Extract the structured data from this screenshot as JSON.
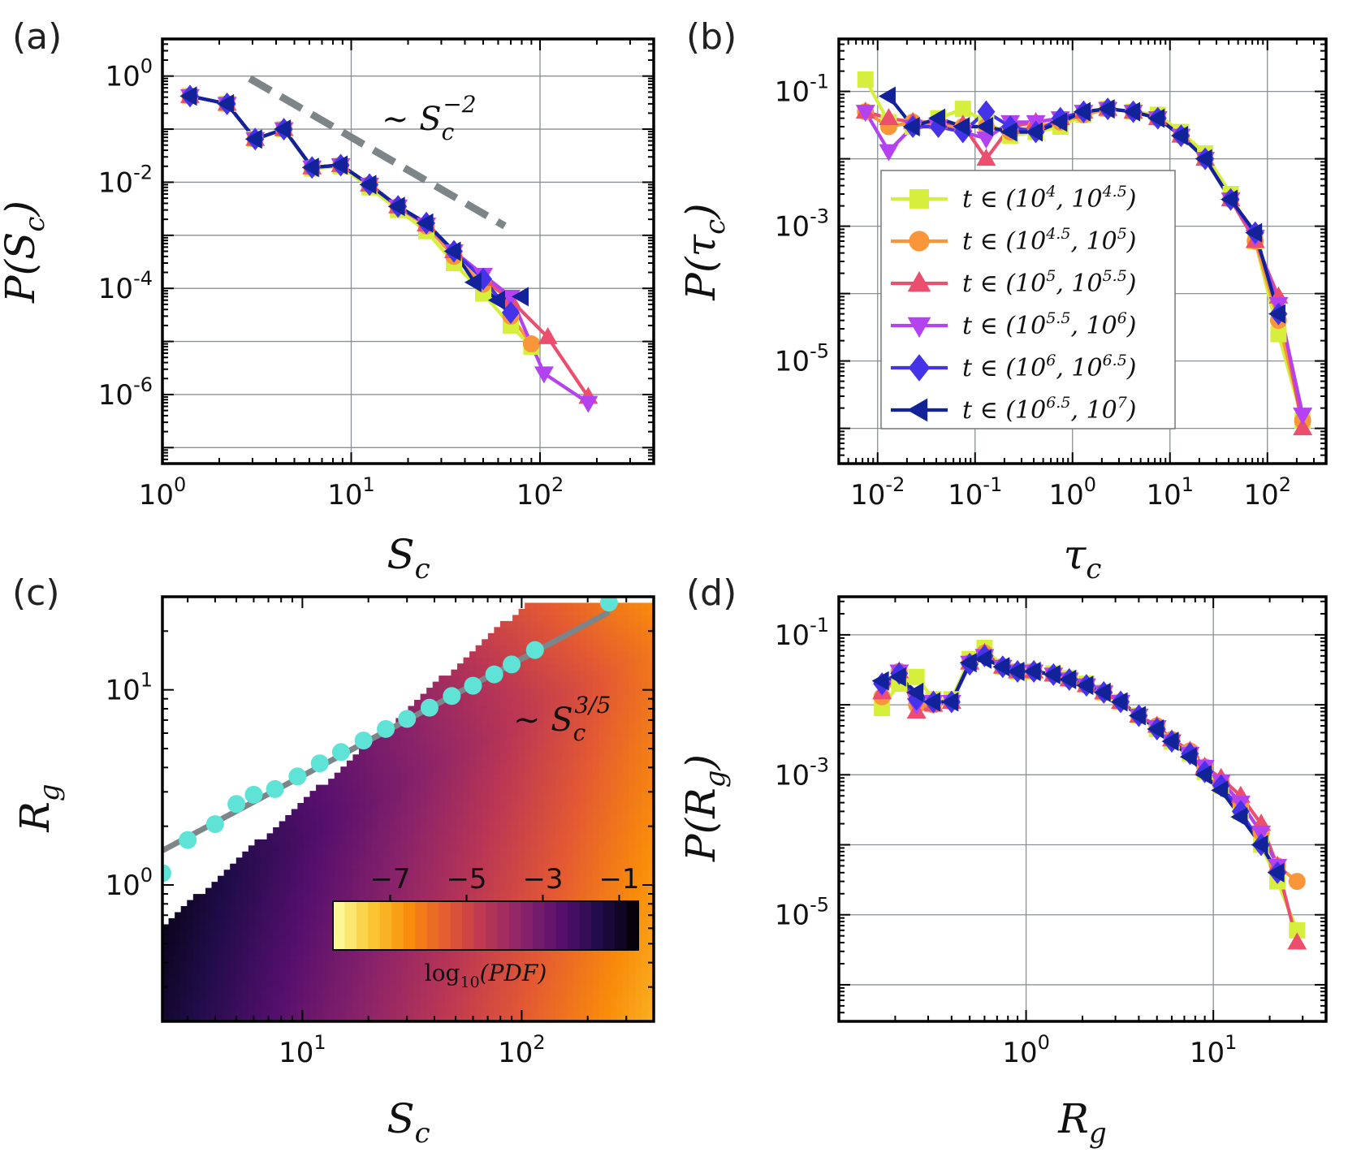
{
  "chart_data": [
    {
      "panel": "(a)",
      "type": "line",
      "xlabel": "S_c",
      "ylabel": "P(S_c)",
      "xscale": "log",
      "yscale": "log",
      "xlim": [
        1,
        400
      ],
      "ylim": [
        5e-08,
        5
      ],
      "xtick_labels": [
        "10^0",
        "10^1",
        "10^2"
      ],
      "ytick_labels": [
        "10^0",
        "10^-2",
        "10^-4",
        "10^-6"
      ],
      "annotation": "~ S_c^{-2}",
      "guide_line": {
        "style": "dashed",
        "color": "#7d8588",
        "x": [
          2.9,
          65
        ],
        "y": [
          0.9,
          0.0015
        ]
      },
      "series": [
        {
          "name": "t ∈ (10^4, 10^4.5)",
          "x": [
            1.4,
            2.2,
            3.1,
            4.4,
            6.2,
            8.8,
            12.5,
            17.7,
            25,
            35,
            50,
            70,
            90
          ],
          "y": [
            0.42,
            0.3,
            0.065,
            0.1,
            0.018,
            0.02,
            0.008,
            0.003,
            0.0012,
            0.0003,
            8e-05,
            2e-05,
            8e-06
          ]
        },
        {
          "name": "t ∈ (10^4.5, 10^5)",
          "x": [
            1.4,
            2.2,
            3.1,
            4.4,
            6.2,
            8.8,
            12.5,
            17.7,
            25,
            35,
            50,
            70,
            90
          ],
          "y": [
            0.42,
            0.3,
            0.065,
            0.1,
            0.019,
            0.021,
            0.009,
            0.0035,
            0.0015,
            0.0004,
            0.00012,
            3e-05,
            9e-06
          ]
        },
        {
          "name": "t ∈ (10^5, 10^5.5)",
          "x": [
            1.4,
            2.2,
            3.1,
            4.4,
            6.2,
            8.8,
            12.5,
            17.7,
            25,
            35,
            50,
            70,
            110,
            180
          ],
          "y": [
            0.42,
            0.3,
            0.065,
            0.1,
            0.019,
            0.021,
            0.009,
            0.0035,
            0.0016,
            0.0005,
            0.00015,
            6e-05,
            1.2e-05,
            9e-07
          ]
        },
        {
          "name": "t ∈ (10^5.5, 10^6)",
          "x": [
            1.4,
            2.2,
            3.1,
            4.4,
            6.2,
            8.8,
            12.5,
            17.7,
            25,
            35,
            50,
            70,
            105,
            180
          ],
          "y": [
            0.42,
            0.3,
            0.065,
            0.1,
            0.019,
            0.021,
            0.009,
            0.0035,
            0.0016,
            0.0005,
            0.00018,
            7e-05,
            2.5e-06,
            7e-07
          ]
        },
        {
          "name": "t ∈ (10^6, 10^6.5)",
          "x": [
            1.4,
            2.2,
            3.1,
            4.4,
            6.2,
            8.8,
            12.5,
            17.7,
            25,
            35,
            50,
            70
          ],
          "y": [
            0.42,
            0.3,
            0.065,
            0.1,
            0.019,
            0.021,
            0.009,
            0.0035,
            0.0017,
            0.0005,
            0.00015,
            3.5e-05
          ]
        },
        {
          "name": "t ∈ (10^6.5, 10^7)",
          "x": [
            1.4,
            2.2,
            3.1,
            4.4,
            6.2,
            8.8,
            12.5,
            17.7,
            25,
            35,
            45,
            60,
            80
          ],
          "y": [
            0.42,
            0.3,
            0.065,
            0.1,
            0.019,
            0.021,
            0.009,
            0.0035,
            0.0017,
            0.0005,
            0.00013,
            6e-05,
            7e-05
          ]
        }
      ]
    },
    {
      "panel": "(b)",
      "type": "line",
      "xlabel": "τ_c",
      "ylabel": "P(τ_c)",
      "xscale": "log",
      "yscale": "log",
      "xlim": [
        0.004,
        400
      ],
      "ylim": [
        3e-07,
        0.6
      ],
      "xtick_labels": [
        "10^-2",
        "10^-1",
        "10^0",
        "10^1",
        "10^2"
      ],
      "ytick_labels": [
        "10^-1",
        "10^-3",
        "10^-5"
      ],
      "legend": "center-left",
      "series": [
        {
          "name": "t ∈ (10^4, 10^4.5)",
          "x": [
            0.0075,
            0.013,
            0.023,
            0.042,
            0.075,
            0.13,
            0.23,
            0.42,
            0.75,
            1.3,
            2.3,
            4.2,
            7.5,
            13,
            23,
            42,
            75,
            130,
            230
          ],
          "y": [
            0.15,
            0.035,
            0.03,
            0.04,
            0.055,
            0.035,
            0.022,
            0.025,
            0.03,
            0.045,
            0.055,
            0.05,
            0.045,
            0.025,
            0.012,
            0.003,
            0.0006,
            2.5e-05,
            1.3e-06
          ]
        },
        {
          "name": "t ∈ (10^4.5, 10^5)",
          "x": [
            0.0075,
            0.013,
            0.023,
            0.042,
            0.075,
            0.13,
            0.23,
            0.42,
            0.75,
            1.3,
            2.3,
            4.2,
            7.5,
            13,
            23,
            42,
            75,
            130,
            230
          ],
          "y": [
            0.05,
            0.03,
            0.035,
            0.032,
            0.03,
            0.03,
            0.025,
            0.03,
            0.035,
            0.045,
            0.055,
            0.05,
            0.04,
            0.022,
            0.01,
            0.0025,
            0.0006,
            4e-05,
            1.3e-06
          ]
        },
        {
          "name": "t ∈ (10^5, 10^5.5)",
          "x": [
            0.0075,
            0.013,
            0.023,
            0.042,
            0.075,
            0.13,
            0.23,
            0.42,
            0.75,
            1.3,
            2.3,
            4.2,
            7.5,
            13,
            23,
            42,
            75,
            130,
            230
          ],
          "y": [
            0.05,
            0.04,
            0.035,
            0.035,
            0.032,
            0.01,
            0.03,
            0.035,
            0.04,
            0.05,
            0.055,
            0.05,
            0.04,
            0.022,
            0.01,
            0.0025,
            0.0006,
            9e-05,
            1e-06
          ]
        },
        {
          "name": "t ∈ (10^5.5, 10^6)",
          "x": [
            0.0075,
            0.013,
            0.023,
            0.042,
            0.075,
            0.13,
            0.23,
            0.42,
            0.75,
            1.3,
            2.3,
            4.2,
            7.5,
            13,
            23,
            42,
            75,
            130,
            230
          ],
          "y": [
            0.05,
            0.013,
            0.03,
            0.03,
            0.025,
            0.02,
            0.035,
            0.035,
            0.04,
            0.05,
            0.055,
            0.05,
            0.04,
            0.022,
            0.01,
            0.0025,
            0.0007,
            7e-05,
            1.6e-06
          ]
        },
        {
          "name": "t ∈ (10^6, 10^6.5)",
          "x": [
            0.023,
            0.042,
            0.075,
            0.13,
            0.23,
            0.42,
            0.75,
            1.3,
            2.3,
            4.2,
            7.5,
            13,
            23,
            42,
            75,
            130
          ],
          "y": [
            0.03,
            0.03,
            0.025,
            0.05,
            0.03,
            0.025,
            0.04,
            0.05,
            0.055,
            0.05,
            0.04,
            0.022,
            0.01,
            0.0025,
            0.0008,
            5e-05
          ]
        },
        {
          "name": "t ∈ (10^6.5, 10^7)",
          "x": [
            0.013,
            0.023,
            0.042,
            0.075,
            0.13,
            0.23,
            0.42,
            0.75,
            1.3,
            2.3,
            4.2,
            7.5,
            13,
            23,
            42,
            75,
            130
          ],
          "y": [
            0.085,
            0.03,
            0.04,
            0.03,
            0.03,
            0.025,
            0.025,
            0.035,
            0.05,
            0.055,
            0.05,
            0.04,
            0.022,
            0.01,
            0.0025,
            0.0008,
            5e-05
          ]
        }
      ]
    },
    {
      "panel": "(c)",
      "type": "heatmap",
      "xlabel": "S_c",
      "ylabel": "R_g",
      "xscale": "log",
      "yscale": "log",
      "xlim": [
        2.3,
        400
      ],
      "ylim": [
        0.2,
        30
      ],
      "xtick_labels": [
        "10^1",
        "10^2"
      ],
      "ytick_labels": [
        "10^1",
        "10^0"
      ],
      "colorbar": {
        "label": "log10(PDF)",
        "tick_labels": [
          "−7",
          "−5",
          "−3",
          "−1"
        ],
        "range": [
          -8.5,
          -0.5
        ],
        "colormap": "inferno-reversed"
      },
      "annotation": "~ S_c^{3/5}",
      "fit_line": {
        "color": "#7d8588",
        "exponent": 0.6,
        "x": [
          2.3,
          250
        ],
        "y": [
          1.5,
          25
        ]
      },
      "mean_points": {
        "color": "#5fe3d6",
        "x": [
          2.3,
          3.0,
          4.0,
          5.0,
          6.0,
          7.5,
          9.5,
          12,
          15,
          19,
          24,
          30,
          38,
          48,
          60,
          75,
          90,
          115,
          250
        ],
        "y": [
          1.15,
          1.7,
          2.05,
          2.6,
          2.9,
          3.1,
          3.6,
          4.2,
          4.8,
          5.5,
          6.3,
          7.1,
          8.1,
          9.3,
          10.5,
          12.0,
          13.5,
          16.0,
          28.0
        ]
      }
    },
    {
      "panel": "(d)",
      "type": "line",
      "xlabel": "R_g",
      "ylabel": "P(R_g)",
      "xscale": "log",
      "yscale": "log",
      "xlim": [
        0.1,
        40
      ],
      "ylim": [
        3e-07,
        0.35
      ],
      "xtick_labels": [
        "10^0",
        "10^1"
      ],
      "ytick_labels": [
        "10^-1",
        "10^-3",
        "10^-5"
      ],
      "series": [
        {
          "name": "t ∈ (10^4, 10^4.5)",
          "x": [
            0.17,
            0.21,
            0.26,
            0.32,
            0.4,
            0.5,
            0.6,
            0.75,
            0.9,
            1.1,
            1.4,
            1.7,
            2.1,
            2.6,
            3.2,
            4,
            5,
            6,
            7.5,
            9,
            11,
            14,
            18,
            22,
            28
          ],
          "y": [
            0.009,
            0.02,
            0.025,
            0.012,
            0.012,
            0.045,
            0.065,
            0.035,
            0.03,
            0.03,
            0.028,
            0.024,
            0.02,
            0.015,
            0.011,
            0.007,
            0.0045,
            0.003,
            0.002,
            0.0011,
            0.0007,
            0.0003,
            0.0001,
            3e-05,
            6e-06
          ]
        },
        {
          "name": "t ∈ (10^4.5, 10^5)",
          "x": [
            0.17,
            0.21,
            0.26,
            0.32,
            0.4,
            0.5,
            0.6,
            0.75,
            0.9,
            1.1,
            1.4,
            1.7,
            2.1,
            2.6,
            3.2,
            4,
            5,
            6,
            7.5,
            9,
            11,
            14,
            18,
            22,
            28
          ],
          "y": [
            0.013,
            0.03,
            0.01,
            0.01,
            0.011,
            0.04,
            0.055,
            0.035,
            0.03,
            0.03,
            0.027,
            0.023,
            0.019,
            0.015,
            0.011,
            0.007,
            0.005,
            0.0032,
            0.0022,
            0.0013,
            0.0008,
            0.0004,
            0.00015,
            5e-05,
            3e-05
          ]
        },
        {
          "name": "t ∈ (10^5, 10^5.5)",
          "x": [
            0.17,
            0.21,
            0.26,
            0.32,
            0.4,
            0.5,
            0.6,
            0.75,
            0.9,
            1.1,
            1.4,
            1.7,
            2.1,
            2.6,
            3.2,
            4,
            5,
            6,
            7.5,
            9,
            11,
            14,
            18,
            22,
            28
          ],
          "y": [
            0.015,
            0.03,
            0.008,
            0.01,
            0.011,
            0.04,
            0.055,
            0.035,
            0.03,
            0.03,
            0.027,
            0.023,
            0.019,
            0.015,
            0.011,
            0.007,
            0.005,
            0.0032,
            0.0022,
            0.0013,
            0.0009,
            0.0005,
            0.0002,
            5e-05,
            4e-06
          ]
        },
        {
          "name": "t ∈ (10^5.5, 10^6)",
          "x": [
            0.17,
            0.21,
            0.26,
            0.32,
            0.4,
            0.5,
            0.6,
            0.75,
            0.9,
            1.1,
            1.4,
            1.7,
            2.1,
            2.6,
            3.2,
            4,
            5,
            6,
            7.5,
            9,
            11,
            14,
            18,
            22
          ],
          "y": [
            0.018,
            0.03,
            0.01,
            0.011,
            0.011,
            0.04,
            0.05,
            0.035,
            0.03,
            0.03,
            0.027,
            0.023,
            0.019,
            0.015,
            0.011,
            0.007,
            0.0048,
            0.003,
            0.002,
            0.0013,
            0.0008,
            0.0004,
            0.00015,
            5e-05
          ]
        },
        {
          "name": "t ∈ (10^6, 10^6.5)",
          "x": [
            0.17,
            0.21,
            0.26,
            0.32,
            0.4,
            0.5,
            0.6,
            0.75,
            0.9,
            1.1,
            1.4,
            1.7,
            2.1,
            2.6,
            3.2,
            4,
            5,
            6,
            7.5,
            9,
            11,
            14,
            18,
            22
          ],
          "y": [
            0.02,
            0.028,
            0.012,
            0.011,
            0.011,
            0.038,
            0.05,
            0.035,
            0.03,
            0.03,
            0.027,
            0.023,
            0.019,
            0.015,
            0.011,
            0.007,
            0.0045,
            0.003,
            0.002,
            0.0011,
            0.0007,
            0.0003,
            0.0001,
            4e-05
          ]
        },
        {
          "name": "t ∈ (10^6.5, 10^7)",
          "x": [
            0.17,
            0.21,
            0.26,
            0.32,
            0.4,
            0.5,
            0.6,
            0.75,
            0.9,
            1.1,
            1.4,
            1.7,
            2.1,
            2.6,
            3.2,
            4,
            5,
            6,
            7.5,
            9,
            11,
            14,
            18,
            22
          ],
          "y": [
            0.022,
            0.025,
            0.015,
            0.011,
            0.011,
            0.04,
            0.045,
            0.035,
            0.03,
            0.03,
            0.027,
            0.023,
            0.019,
            0.015,
            0.011,
            0.007,
            0.0045,
            0.003,
            0.0018,
            0.001,
            0.0006,
            0.00025,
            0.0001,
            4e-05
          ]
        }
      ]
    }
  ],
  "series_styles": [
    {
      "color": "#d6ee3c",
      "marker": "square"
    },
    {
      "color": "#f9963a",
      "marker": "circle"
    },
    {
      "color": "#ec4f6e",
      "marker": "triangle-up"
    },
    {
      "color": "#b442f0",
      "marker": "triangle-down"
    },
    {
      "color": "#4433e8",
      "marker": "diamond"
    },
    {
      "color": "#12239a",
      "marker": "triangle-left"
    }
  ]
}
